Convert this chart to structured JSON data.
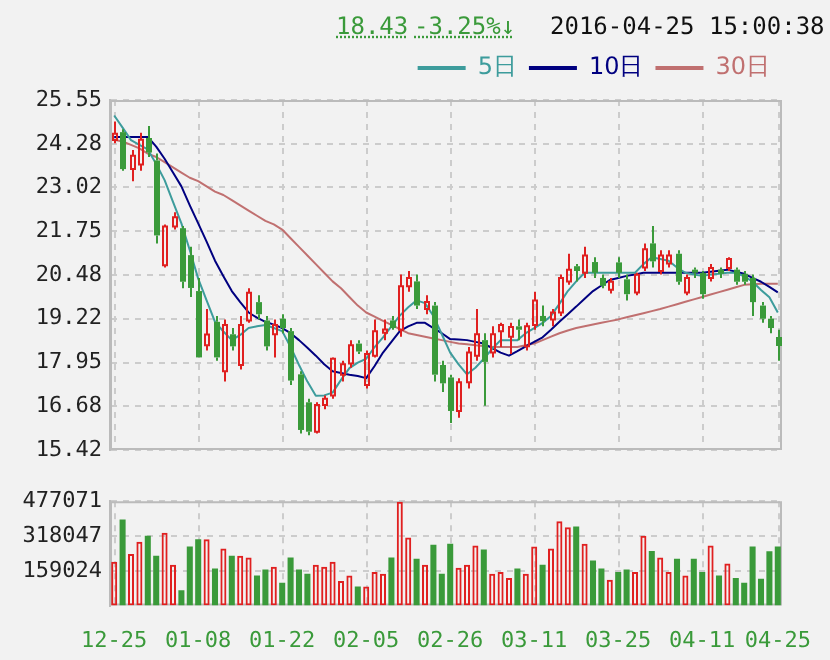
{
  "chart_data": [
    {
      "type": "candlestick",
      "annotations": [
        "18.43",
        "-3.25%↓",
        "2016-04-25 15:00:38"
      ],
      "categories": [
        null,
        null,
        null,
        null,
        null,
        null,
        null,
        null,
        null,
        null,
        null,
        null,
        null,
        null,
        null,
        null,
        null,
        null,
        null,
        null,
        null,
        null,
        null,
        null,
        null,
        null,
        null,
        null,
        null,
        null,
        null,
        null,
        null,
        null,
        null,
        null,
        null,
        null,
        null,
        null,
        null,
        null,
        null,
        null,
        null,
        null,
        null,
        null,
        null,
        null,
        null,
        null,
        null,
        null,
        null,
        null,
        null,
        null,
        null,
        null,
        null,
        null,
        null,
        null,
        null,
        null,
        null,
        null,
        null,
        null,
        null,
        null,
        null,
        null,
        null,
        null,
        null,
        null,
        null,
        null
      ],
      "ohlc": [
        [
          24.39,
          24.93,
          24.3,
          24.57
        ],
        [
          24.62,
          24.7,
          23.5,
          23.55
        ],
        [
          23.55,
          24.1,
          23.2,
          23.94
        ],
        [
          23.68,
          24.6,
          23.5,
          24.4
        ],
        [
          24.45,
          24.8,
          23.9,
          24.03
        ],
        [
          23.8,
          24.0,
          21.4,
          21.63
        ],
        [
          20.77,
          21.95,
          20.7,
          21.89
        ],
        [
          21.89,
          22.3,
          21.8,
          22.16
        ],
        [
          21.84,
          21.9,
          20.1,
          20.29
        ],
        [
          21.06,
          21.3,
          19.85,
          20.11
        ],
        [
          20.02,
          20.4,
          18.1,
          18.1
        ],
        [
          18.45,
          19.5,
          18.3,
          18.76
        ],
        [
          19.13,
          19.3,
          18.0,
          18.1
        ],
        [
          17.7,
          19.2,
          17.4,
          19.04
        ],
        [
          18.77,
          18.95,
          18.3,
          18.42
        ],
        [
          17.88,
          19.3,
          17.75,
          19.04
        ],
        [
          19.17,
          20.1,
          19.1,
          19.97
        ],
        [
          19.7,
          19.9,
          19.2,
          19.35
        ],
        [
          19.17,
          19.3,
          18.3,
          18.42
        ],
        [
          18.77,
          19.2,
          18.1,
          19.04
        ],
        [
          19.22,
          19.35,
          18.8,
          18.95
        ],
        [
          18.86,
          18.95,
          17.3,
          17.43
        ],
        [
          17.61,
          17.7,
          15.9,
          16.0
        ],
        [
          16.8,
          16.9,
          15.85,
          15.95
        ],
        [
          15.95,
          16.8,
          15.9,
          16.72
        ],
        [
          16.72,
          17.0,
          16.6,
          16.9
        ],
        [
          17.0,
          18.1,
          16.9,
          18.06
        ],
        [
          17.6,
          18.0,
          17.4,
          17.9
        ],
        [
          17.92,
          18.6,
          17.8,
          18.45
        ],
        [
          18.5,
          18.6,
          18.2,
          18.27
        ],
        [
          17.3,
          18.3,
          17.2,
          18.2
        ],
        [
          18.15,
          19.2,
          18.1,
          18.86
        ],
        [
          18.81,
          19.2,
          18.6,
          18.91
        ],
        [
          19.17,
          19.3,
          18.9,
          18.95
        ],
        [
          18.9,
          20.5,
          18.7,
          20.16
        ],
        [
          20.16,
          20.6,
          20.0,
          20.4
        ],
        [
          20.3,
          20.5,
          19.5,
          19.6
        ],
        [
          19.5,
          19.9,
          19.35,
          19.7
        ],
        [
          19.6,
          19.7,
          17.4,
          17.6
        ],
        [
          17.88,
          18.0,
          17.1,
          17.35
        ],
        [
          17.52,
          17.6,
          16.2,
          16.55
        ],
        [
          16.55,
          17.5,
          16.35,
          17.38
        ],
        [
          17.38,
          18.4,
          17.2,
          18.24
        ],
        [
          18.15,
          19.5,
          18.0,
          18.77
        ],
        [
          18.6,
          18.8,
          16.7,
          17.97
        ],
        [
          18.24,
          19.0,
          18.1,
          18.77
        ],
        [
          18.86,
          19.1,
          18.4,
          19.04
        ],
        [
          18.7,
          19.1,
          18.2,
          18.98
        ],
        [
          19.0,
          19.2,
          18.6,
          18.9
        ],
        [
          18.42,
          19.1,
          18.3,
          19.0
        ],
        [
          19.04,
          20.0,
          18.9,
          19.75
        ],
        [
          19.3,
          19.6,
          19.0,
          19.15
        ],
        [
          19.2,
          19.5,
          19.0,
          19.4
        ],
        [
          19.4,
          20.5,
          19.3,
          20.4
        ],
        [
          20.3,
          21.1,
          20.2,
          20.64
        ],
        [
          20.74,
          20.8,
          20.3,
          20.6
        ],
        [
          20.55,
          21.3,
          20.4,
          21.05
        ],
        [
          20.86,
          21.0,
          20.4,
          20.55
        ],
        [
          20.4,
          20.5,
          20.1,
          20.17
        ],
        [
          20.06,
          20.4,
          19.95,
          20.29
        ],
        [
          20.85,
          21.0,
          20.4,
          20.55
        ],
        [
          20.36,
          20.5,
          19.75,
          19.93
        ],
        [
          19.98,
          20.55,
          19.9,
          20.49
        ],
        [
          20.7,
          21.4,
          20.6,
          21.23
        ],
        [
          21.4,
          21.9,
          20.7,
          20.88
        ],
        [
          20.6,
          21.2,
          20.5,
          21.05
        ],
        [
          20.82,
          21.2,
          20.7,
          21.05
        ],
        [
          21.1,
          21.2,
          20.2,
          20.29
        ],
        [
          19.98,
          20.5,
          19.9,
          20.4
        ],
        [
          20.64,
          20.7,
          20.4,
          20.55
        ],
        [
          20.55,
          20.6,
          19.8,
          19.93
        ],
        [
          20.4,
          20.8,
          20.3,
          20.69
        ],
        [
          20.64,
          20.7,
          20.4,
          20.52
        ],
        [
          20.69,
          21.0,
          20.6,
          20.95
        ],
        [
          20.64,
          20.7,
          20.2,
          20.29
        ],
        [
          20.52,
          20.6,
          20.2,
          20.29
        ],
        [
          20.4,
          20.5,
          19.3,
          19.7
        ],
        [
          19.6,
          19.7,
          19.1,
          19.22
        ],
        [
          19.22,
          19.3,
          18.8,
          18.95
        ],
        [
          18.69,
          18.9,
          18.0,
          18.43
        ]
      ],
      "colors": [
        "#e02020",
        "#3a9a3a",
        "#e02020",
        "#e02020",
        "#3a9a3a",
        "#3a9a3a",
        "#e02020",
        "#e02020",
        "#3a9a3a",
        "#3a9a3a",
        "#3a9a3a",
        "#e02020",
        "#3a9a3a",
        "#e02020",
        "#3a9a3a",
        "#e02020",
        "#e02020",
        "#3a9a3a",
        "#3a9a3a",
        "#e02020",
        "#3a9a3a",
        "#3a9a3a",
        "#3a9a3a",
        "#3a9a3a",
        "#e02020",
        "#e02020",
        "#e02020",
        "#e02020",
        "#e02020",
        "#3a9a3a",
        "#e02020",
        "#e02020",
        "#e02020",
        "#3a9a3a",
        "#e02020",
        "#e02020",
        "#3a9a3a",
        "#e02020",
        "#3a9a3a",
        "#3a9a3a",
        "#3a9a3a",
        "#e02020",
        "#e02020",
        "#e02020",
        "#3a9a3a",
        "#e02020",
        "#e02020",
        "#e02020",
        "#3a9a3a",
        "#e02020",
        "#e02020",
        "#3a9a3a",
        "#e02020",
        "#e02020",
        "#e02020",
        "#3a9a3a",
        "#e02020",
        "#3a9a3a",
        "#3a9a3a",
        "#e02020",
        "#3a9a3a",
        "#3a9a3a",
        "#e02020",
        "#e02020",
        "#3a9a3a",
        "#e02020",
        "#e02020",
        "#3a9a3a",
        "#e02020",
        "#3a9a3a",
        "#3a9a3a",
        "#e02020",
        "#3a9a3a",
        "#e02020",
        "#3a9a3a",
        "#3a9a3a",
        "#3a9a3a",
        "#3a9a3a",
        "#3a9a3a",
        "#3a9a3a"
      ],
      "series": [
        {
          "name": "5日",
          "type": "line",
          "color": "#3d9c9c",
          "values": [
            25.1,
            24.75,
            24.39,
            24.25,
            24.12,
            23.7,
            23.23,
            22.6,
            21.98,
            21.2,
            20.38,
            19.75,
            19.13,
            18.85,
            18.6,
            18.75,
            18.95,
            19.0,
            19.04,
            18.95,
            18.86,
            18.4,
            17.88,
            17.4,
            16.99,
            17.0,
            17.08,
            17.45,
            17.79,
            17.95,
            18.06,
            18.4,
            18.68,
            19.0,
            19.31,
            19.55,
            19.75,
            19.67,
            19.3,
            18.77,
            18.24,
            17.9,
            17.61,
            17.8,
            18.06,
            18.35,
            18.6,
            18.6,
            18.6,
            18.8,
            18.95,
            19.1,
            19.3,
            19.65,
            20.02,
            20.3,
            20.55,
            20.55,
            20.55,
            20.55,
            20.55,
            20.55,
            20.55,
            20.8,
            21.0,
            20.95,
            20.9,
            20.7,
            20.55,
            20.5,
            20.46,
            20.5,
            20.52,
            20.55,
            20.55,
            20.45,
            20.29,
            20.05,
            19.84,
            19.4
          ]
        },
        {
          "name": "10日",
          "type": "line",
          "color": "#000080",
          "values": [
            24.48,
            24.48,
            24.48,
            24.48,
            24.48,
            24.2,
            23.85,
            23.45,
            23.05,
            22.5,
            21.98,
            21.45,
            20.9,
            20.45,
            20.02,
            19.7,
            19.4,
            19.25,
            19.13,
            19.05,
            18.95,
            18.8,
            18.6,
            18.38,
            18.15,
            17.9,
            17.7,
            17.65,
            17.6,
            17.56,
            17.5,
            17.85,
            18.24,
            18.55,
            18.86,
            19.0,
            19.1,
            19.1,
            18.95,
            18.8,
            18.63,
            18.62,
            18.6,
            18.55,
            18.5,
            18.37,
            18.24,
            18.15,
            18.28,
            18.42,
            18.55,
            18.68,
            18.9,
            19.13,
            19.35,
            19.57,
            19.8,
            20.02,
            20.18,
            20.34,
            20.4,
            20.46,
            20.5,
            20.55,
            20.55,
            20.55,
            20.55,
            20.55,
            20.55,
            20.55,
            20.55,
            20.58,
            20.61,
            20.64,
            20.58,
            20.52,
            20.4,
            20.29,
            20.14,
            19.98
          ]
        },
        {
          "name": "30日",
          "type": "line",
          "color": "#c07070",
          "values": [
            24.4,
            24.35,
            24.25,
            24.15,
            24.0,
            23.9,
            23.75,
            23.6,
            23.45,
            23.3,
            23.2,
            23.05,
            22.9,
            22.8,
            22.65,
            22.5,
            22.35,
            22.2,
            22.05,
            21.95,
            21.8,
            21.55,
            21.3,
            21.05,
            20.8,
            20.55,
            20.3,
            20.1,
            19.85,
            19.6,
            19.4,
            19.28,
            19.16,
            19.04,
            18.92,
            18.8,
            18.75,
            18.7,
            18.65,
            18.6,
            18.55,
            18.5,
            18.48,
            18.45,
            18.43,
            18.41,
            18.4,
            18.4,
            18.4,
            18.45,
            18.5,
            18.6,
            18.7,
            18.8,
            18.88,
            18.95,
            19.0,
            19.05,
            19.1,
            19.15,
            19.2,
            19.26,
            19.32,
            19.38,
            19.44,
            19.5,
            19.57,
            19.64,
            19.71,
            19.78,
            19.85,
            19.92,
            19.99,
            20.06,
            20.13,
            20.2,
            20.22,
            20.23,
            20.23,
            20.23
          ]
        }
      ],
      "ylim": [
        15.42,
        25.55
      ],
      "yticks": [
        15.42,
        16.68,
        17.95,
        19.22,
        20.48,
        21.75,
        23.02,
        24.28,
        25.55
      ],
      "grid": true,
      "legend": "top right",
      "tick_labels": "y"
    },
    {
      "type": "bar",
      "categories": [
        "12-25",
        null,
        null,
        null,
        null,
        null,
        null,
        null,
        null,
        null,
        "01-08",
        null,
        null,
        null,
        null,
        null,
        null,
        null,
        null,
        null,
        "01-22",
        null,
        null,
        null,
        null,
        null,
        null,
        null,
        null,
        null,
        "02-05",
        null,
        null,
        null,
        null,
        null,
        null,
        null,
        null,
        null,
        "02-26",
        null,
        null,
        null,
        null,
        null,
        null,
        null,
        null,
        null,
        "03-11",
        null,
        null,
        null,
        null,
        null,
        null,
        null,
        null,
        null,
        "03-25",
        null,
        null,
        null,
        null,
        null,
        null,
        null,
        null,
        null,
        "04-11",
        null,
        null,
        null,
        null,
        null,
        null,
        null,
        null,
        "04-25"
      ],
      "values": [
        200000,
        394000,
        236000,
        292000,
        319000,
        228000,
        333000,
        187000,
        70000,
        270000,
        303000,
        303000,
        170000,
        261000,
        228000,
        228000,
        220000,
        137000,
        165000,
        178000,
        104000,
        220000,
        165000,
        145000,
        187000,
        178000,
        200000,
        112000,
        137000,
        87000,
        87000,
        153000,
        145000,
        220000,
        475000,
        311000,
        214000,
        187000,
        278000,
        145000,
        283000,
        173000,
        187000,
        275000,
        256000,
        145000,
        153000,
        126000,
        170000,
        145000,
        270000,
        187000,
        261000,
        386000,
        358000,
        361000,
        283000,
        206000,
        170000,
        118000,
        153000,
        165000,
        153000,
        319000,
        250000,
        220000,
        153000,
        214000,
        137000,
        214000,
        153000,
        275000,
        137000,
        192000,
        126000,
        104000,
        270000,
        123000,
        248000,
        270000
      ],
      "colors": [
        "#e02020",
        "#3a9a3a",
        "#e02020",
        "#e02020",
        "#3a9a3a",
        "#3a9a3a",
        "#e02020",
        "#e02020",
        "#3a9a3a",
        "#3a9a3a",
        "#3a9a3a",
        "#e02020",
        "#3a9a3a",
        "#e02020",
        "#3a9a3a",
        "#e02020",
        "#e02020",
        "#3a9a3a",
        "#3a9a3a",
        "#e02020",
        "#3a9a3a",
        "#3a9a3a",
        "#3a9a3a",
        "#3a9a3a",
        "#e02020",
        "#e02020",
        "#e02020",
        "#e02020",
        "#e02020",
        "#3a9a3a",
        "#e02020",
        "#e02020",
        "#e02020",
        "#3a9a3a",
        "#e02020",
        "#e02020",
        "#3a9a3a",
        "#e02020",
        "#3a9a3a",
        "#3a9a3a",
        "#3a9a3a",
        "#e02020",
        "#e02020",
        "#e02020",
        "#3a9a3a",
        "#e02020",
        "#e02020",
        "#e02020",
        "#3a9a3a",
        "#e02020",
        "#e02020",
        "#3a9a3a",
        "#e02020",
        "#e02020",
        "#e02020",
        "#3a9a3a",
        "#e02020",
        "#3a9a3a",
        "#3a9a3a",
        "#e02020",
        "#3a9a3a",
        "#3a9a3a",
        "#e02020",
        "#e02020",
        "#3a9a3a",
        "#e02020",
        "#e02020",
        "#3a9a3a",
        "#e02020",
        "#3a9a3a",
        "#3a9a3a",
        "#e02020",
        "#3a9a3a",
        "#e02020",
        "#3a9a3a",
        "#3a9a3a",
        "#3a9a3a",
        "#3a9a3a",
        "#3a9a3a",
        "#3a9a3a"
      ],
      "ylim": [
        0,
        477071
      ],
      "yticks": [
        159024,
        318047,
        477071
      ],
      "grid": true
    }
  ]
}
